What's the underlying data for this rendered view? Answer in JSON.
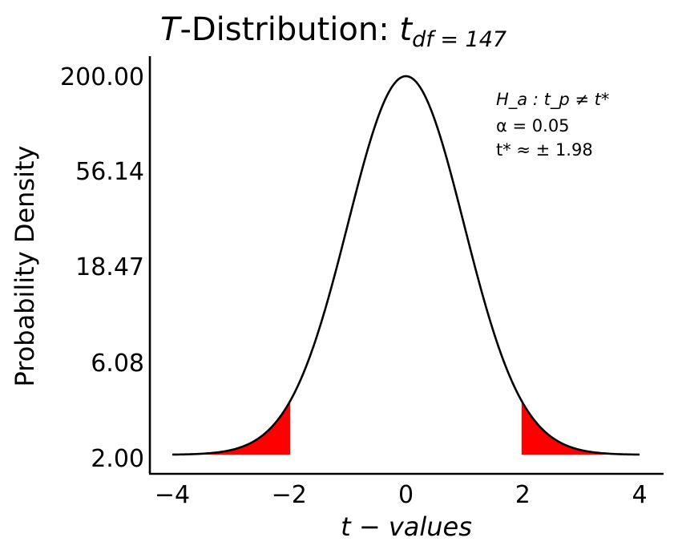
{
  "chart_data": {
    "type": "line",
    "title": {
      "prefix": "T",
      "middle": "-Distribution: ",
      "symbol": "t",
      "subscript": "df = 147"
    },
    "xlabel": "t − values",
    "ylabel": "Probability Density",
    "xlim": [
      -4.4,
      4.4
    ],
    "x_ticks": [
      -4,
      -2,
      0,
      2,
      4
    ],
    "x_tick_labels": [
      "−4",
      "−2",
      "0",
      "2",
      "4"
    ],
    "y_tick_labels": [
      "200.00",
      "56.14",
      "18.47",
      "6.08",
      "2.00"
    ],
    "df": 147,
    "curve_x_range": [
      -4,
      4
    ],
    "critical_value": 1.98,
    "alpha": 0.05,
    "shaded_regions": [
      [
        -4,
        -1.98
      ],
      [
        1.98,
        4
      ]
    ],
    "shade_color": "#ff0000",
    "line_color": "#000000",
    "grid": false,
    "annotation": {
      "line1": "H_a : t_p ≠ t*",
      "line2": "α = 0.05",
      "line3": "t* ≈ ± 1.98"
    }
  }
}
